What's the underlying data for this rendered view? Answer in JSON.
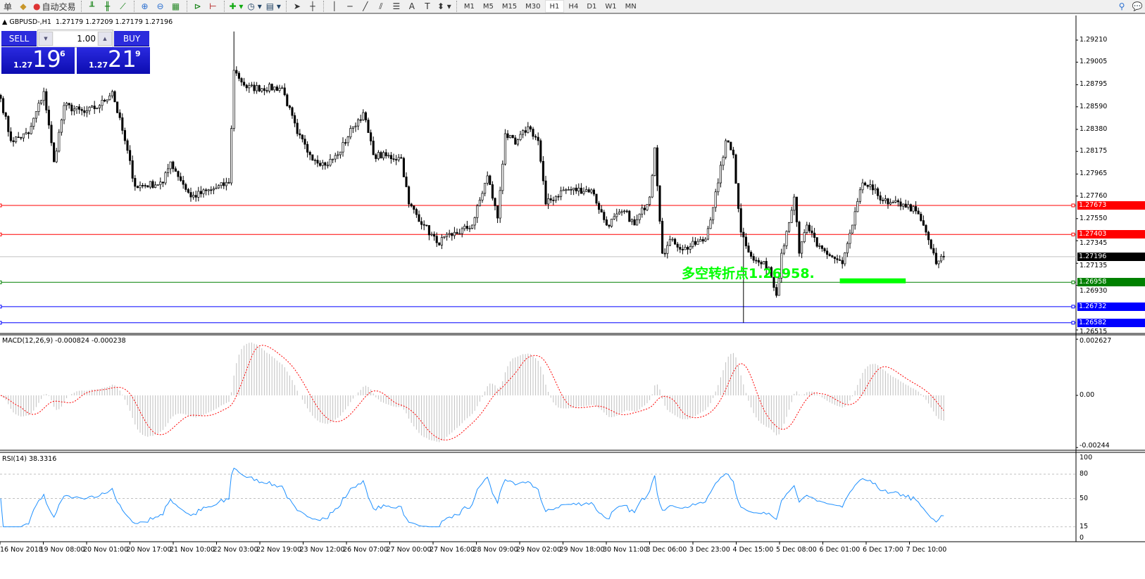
{
  "toolbar": {
    "items": [
      {
        "name": "new-order",
        "label": "单"
      },
      {
        "name": "metaeditor",
        "label": ""
      },
      {
        "name": "auto-trading",
        "label": "自动交易"
      }
    ],
    "timeframes": [
      "M1",
      "M5",
      "M15",
      "M30",
      "H1",
      "H4",
      "D1",
      "W1",
      "MN"
    ],
    "active_timeframe": "H1"
  },
  "symbol": {
    "name": "GBPUSD-,H1",
    "ohlc": "1.27179 1.27209 1.27179 1.27196"
  },
  "trade_panel": {
    "sell_label": "SELL",
    "buy_label": "BUY",
    "lot": "1.00",
    "sell": {
      "prefix": "1.27",
      "big": "19",
      "sup": "6"
    },
    "buy": {
      "prefix": "1.27",
      "big": "21",
      "sup": "9"
    }
  },
  "annotation": {
    "text": "多空转折点1.26958.",
    "color": "#00ff00"
  },
  "chart_data": [
    {
      "type": "candlestick",
      "ylim": [
        1.26515,
        1.2921
      ],
      "y_ticks": [
        "1.29210",
        "1.29005",
        "1.28795",
        "1.28590",
        "1.28380",
        "1.28175",
        "1.27965",
        "1.27760",
        "1.27550",
        "1.27345",
        "1.27135",
        "1.26930",
        "1.26515"
      ],
      "x_ticks": [
        "16 Nov 2018",
        "19 Nov 08:00",
        "20 Nov 01:00",
        "20 Nov 17:00",
        "21 Nov 10:00",
        "22 Nov 03:00",
        "22 Nov 19:00",
        "23 Nov 12:00",
        "26 Nov 07:00",
        "27 Nov 00:00",
        "27 Nov 16:00",
        "28 Nov 09:00",
        "29 Nov 02:00",
        "29 Nov 18:00",
        "30 Nov 11:00",
        "3 Dec 06:00",
        "3 Dec 23:00",
        "4 Dec 15:00",
        "5 Dec 08:00",
        "6 Dec 01:00",
        "6 Dec 17:00",
        "7 Dec 10:00"
      ],
      "close_path_hour_price": [
        [
          0,
          1.28667
        ],
        [
          4,
          1.28275
        ],
        [
          11,
          1.2834
        ],
        [
          17,
          1.28732
        ],
        [
          21,
          1.28078
        ],
        [
          25,
          1.28602
        ],
        [
          33,
          1.28536
        ],
        [
          39,
          1.28602
        ],
        [
          44,
          1.28732
        ],
        [
          49,
          1.28275
        ],
        [
          53,
          1.2785
        ],
        [
          64,
          1.27882
        ],
        [
          67,
          1.28078
        ],
        [
          75,
          1.27751
        ],
        [
          83,
          1.27817
        ],
        [
          90,
          1.27882
        ],
        [
          92,
          1.28929
        ],
        [
          97,
          1.28766
        ],
        [
          111,
          1.28766
        ],
        [
          117,
          1.2834
        ],
        [
          122,
          1.28144
        ],
        [
          128,
          1.28046
        ],
        [
          133,
          1.28144
        ],
        [
          139,
          1.28405
        ],
        [
          143,
          1.28536
        ],
        [
          147,
          1.28144
        ],
        [
          158,
          1.28111
        ],
        [
          161,
          1.27686
        ],
        [
          167,
          1.2749
        ],
        [
          172,
          1.27326
        ],
        [
          178,
          1.27392
        ],
        [
          186,
          1.2749
        ],
        [
          192,
          1.27948
        ],
        [
          196,
          1.27555
        ],
        [
          199,
          1.2834
        ],
        [
          203,
          1.28242
        ],
        [
          208,
          1.28405
        ],
        [
          212,
          1.28275
        ],
        [
          215,
          1.27686
        ],
        [
          222,
          1.27817
        ],
        [
          233,
          1.27817
        ],
        [
          239,
          1.2749
        ],
        [
          246,
          1.27621
        ],
        [
          250,
          1.2749
        ],
        [
          256,
          1.27751
        ],
        [
          258,
          1.28209
        ],
        [
          261,
          1.27228
        ],
        [
          265,
          1.27359
        ],
        [
          269,
          1.27261
        ],
        [
          278,
          1.27359
        ],
        [
          283,
          1.27882
        ],
        [
          286,
          1.28275
        ],
        [
          289,
          1.28144
        ],
        [
          292,
          1.27424
        ],
        [
          297,
          1.27163
        ],
        [
          303,
          1.27097
        ],
        [
          306,
          1.26836
        ],
        [
          308,
          1.27228
        ],
        [
          313,
          1.27751
        ],
        [
          315,
          1.27228
        ],
        [
          318,
          1.2749
        ],
        [
          322,
          1.27293
        ],
        [
          332,
          1.2713
        ],
        [
          336,
          1.2749
        ],
        [
          340,
          1.27882
        ],
        [
          344,
          1.27817
        ],
        [
          350,
          1.27686
        ],
        [
          356,
          1.27686
        ],
        [
          361,
          1.27621
        ],
        [
          365,
          1.27424
        ],
        [
          369,
          1.2713
        ],
        [
          372,
          1.27196
        ]
      ],
      "extremes": [
        {
          "hour": 92,
          "high": 1.2929
        },
        {
          "hour": 293,
          "low": 1.26582
        }
      ],
      "hlines": [
        {
          "price": "1.27673",
          "color": "#ff0000"
        },
        {
          "price": "1.27403",
          "color": "#ff0000"
        },
        {
          "price": "1.27196",
          "color": "#000000",
          "line": "#c0c0c0"
        },
        {
          "price": "1.26958",
          "color": "#008000"
        },
        {
          "price": "1.26732",
          "color": "#0000ff"
        },
        {
          "price": "1.26582",
          "color": "#0000ff"
        }
      ],
      "highlight_bar": {
        "from_hour": 331,
        "to_hour": 357,
        "price": 1.26975,
        "color": "#00ff00"
      }
    },
    {
      "type": "bar+line",
      "name": "MACD(12,26,9)",
      "label": "MACD(12,26,9) -0.000824 -0.000238",
      "ylim": [
        -0.00244,
        0.002627
      ],
      "y_ticks": [
        "0.002627",
        "0.00",
        "-0.00244"
      ],
      "histogram_color": "#c0c0c0",
      "signal_color": "#ff0000"
    },
    {
      "type": "line",
      "name": "RSI(14)",
      "label": "RSI(14) 38.3316",
      "ylim": [
        0,
        100
      ],
      "y_ticks": [
        "100",
        "80",
        "50",
        "15",
        "0"
      ],
      "levels": [
        80,
        50,
        15
      ],
      "color": "#1e90ff"
    }
  ]
}
